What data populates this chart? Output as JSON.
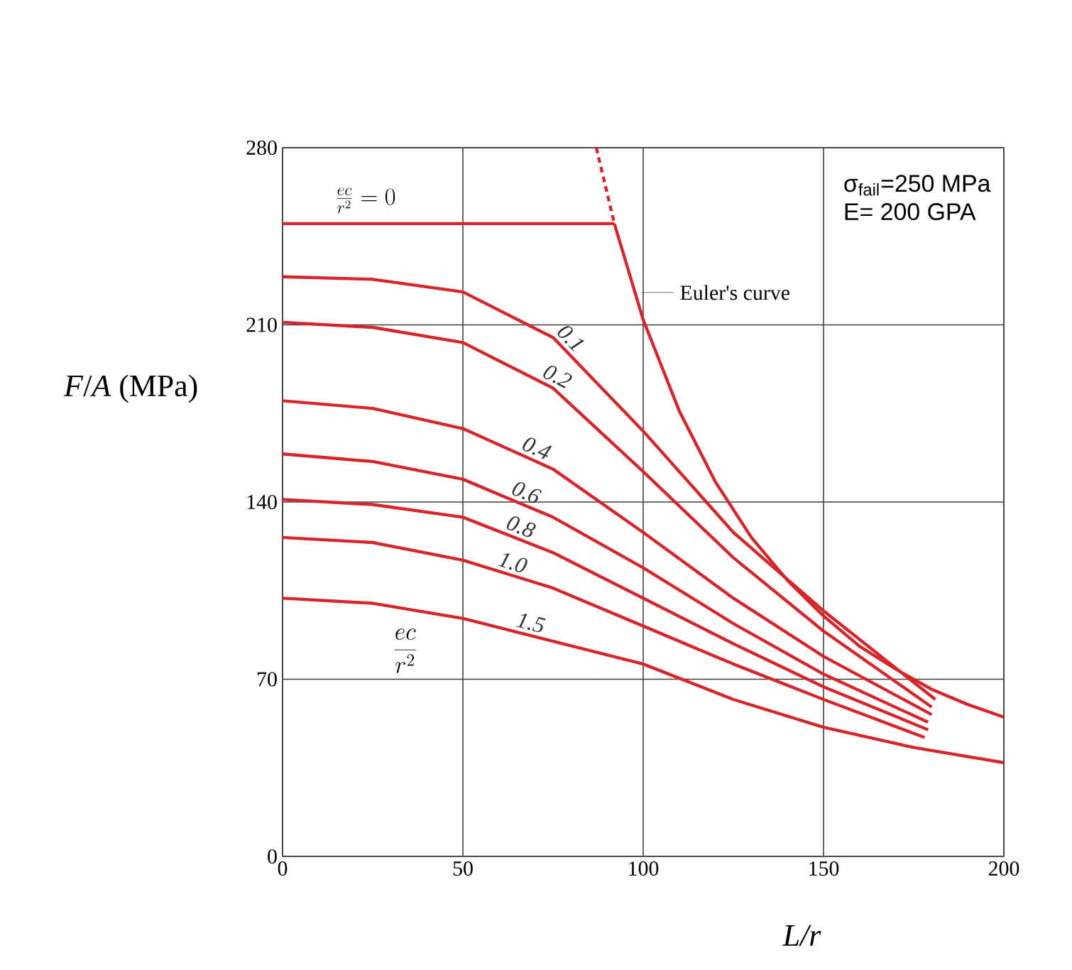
{
  "chart_data": {
    "type": "line",
    "xlabel": "L/r",
    "ylabel": "*F*/*A* (MPa)",
    "xlim": [
      0,
      200
    ],
    "ylim": [
      0,
      280
    ],
    "xticks": [
      0,
      50,
      100,
      150,
      200
    ],
    "yticks": [
      0,
      70,
      140,
      210,
      280
    ],
    "grid": true,
    "marker": "none",
    "series": [
      {
        "name": "\\frac{ec}{r^{2}}=0",
        "color": "#d7262b",
        "x": [
          0,
          92
        ],
        "values": [
          250,
          250
        ]
      },
      {
        "name": "0.1",
        "color": "#d7262b",
        "x": [
          0,
          25,
          50,
          75,
          100,
          125,
          150,
          181
        ],
        "values": [
          229,
          228,
          223,
          205,
          168,
          128,
          97,
          62
        ]
      },
      {
        "name": "0.2",
        "color": "#d7262b",
        "x": [
          0,
          25,
          50,
          75,
          100,
          125,
          150,
          180
        ],
        "values": [
          211,
          209,
          203,
          185,
          152,
          118,
          89,
          59
        ]
      },
      {
        "name": "0.4",
        "color": "#d7262b",
        "x": [
          0,
          25,
          50,
          75,
          100,
          125,
          150,
          180
        ],
        "values": [
          180,
          177,
          169,
          153,
          128,
          102,
          79,
          56
        ]
      },
      {
        "name": "0.6",
        "color": "#d7262b",
        "x": [
          0,
          25,
          50,
          75,
          100,
          125,
          150,
          179
        ],
        "values": [
          159,
          156,
          149,
          134,
          114,
          92,
          72,
          53
        ]
      },
      {
        "name": "0.8",
        "color": "#d7262b",
        "x": [
          0,
          25,
          50,
          75,
          100,
          125,
          150,
          179
        ],
        "values": [
          141,
          139,
          134,
          120,
          102,
          84,
          67,
          50
        ]
      },
      {
        "name": "1.0",
        "color": "#d7262b",
        "x": [
          0,
          25,
          50,
          75,
          100,
          125,
          150,
          178
        ],
        "values": [
          126,
          124,
          117,
          106,
          91,
          76,
          62,
          47
        ]
      },
      {
        "name": "1.5",
        "color": "#d7262b",
        "x": [
          0,
          25,
          50,
          75,
          100,
          125,
          150,
          175,
          200
        ],
        "values": [
          102,
          100,
          94,
          85,
          76,
          62,
          51,
          43,
          37
        ]
      },
      {
        "name": "Euler's curve",
        "color": "#d7262b",
        "x": [
          92,
          100,
          110,
          120,
          130,
          140,
          150,
          160,
          170,
          180,
          190,
          200
        ],
        "values": [
          250,
          212,
          176,
          148,
          126,
          109,
          95,
          83,
          74,
          66,
          60,
          55
        ]
      },
      {
        "color": "#d7262b",
        "line_style": "dashed",
        "x": [
          87,
          89.5,
          92
        ],
        "values": [
          280,
          265,
          250
        ]
      }
    ],
    "annotations": [
      "σ$_{fail}$=250 MPa",
      "E= 200 GPA",
      "\\frac{ec}{r^{2}}"
    ]
  }
}
